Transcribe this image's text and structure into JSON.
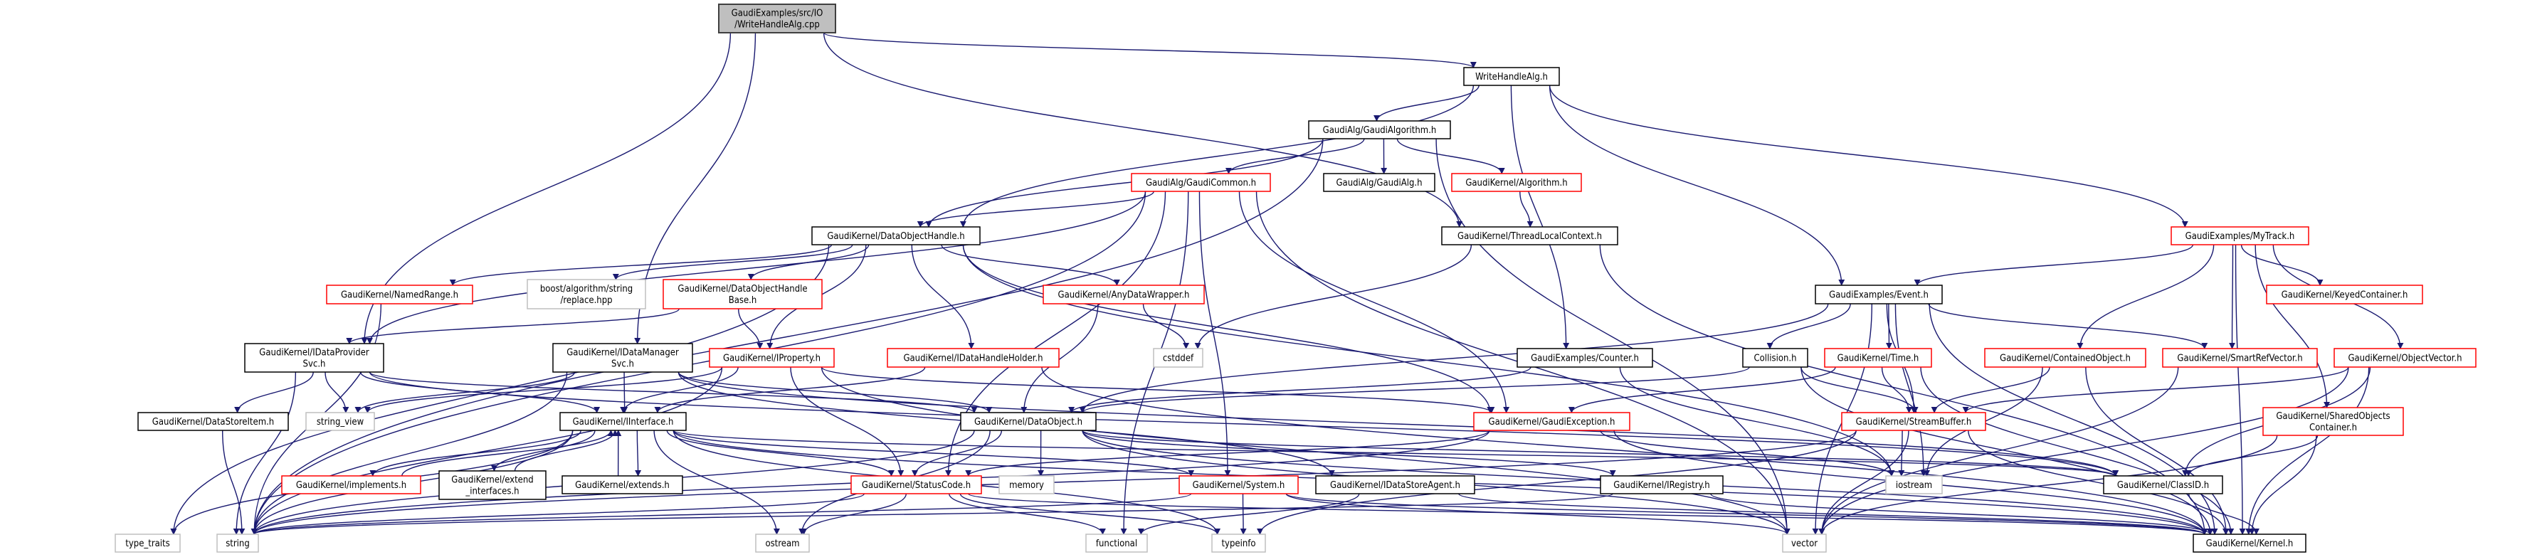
{
  "colors": {
    "edge": "#191970",
    "source_fill": "#bfbfbf",
    "source_border": "#404040",
    "documented_border": "#000000",
    "truncated_border": "#ff0000",
    "system_border": "#bfbfbf",
    "node_fill": "#ffffff"
  },
  "nodes": [
    {
      "id": "cpp",
      "lines": [
        "GaudiExamples/src/IO",
        "/WriteHandleAlg.cpp"
      ],
      "kind": "source"
    },
    {
      "id": "wha",
      "lines": [
        "WriteHandleAlg.h"
      ],
      "kind": "documented"
    },
    {
      "id": "galgo",
      "lines": [
        "GaudiAlg/GaudiAlgorithm.h"
      ],
      "kind": "documented"
    },
    {
      "id": "gcommon",
      "lines": [
        "GaudiAlg/GaudiCommon.h"
      ],
      "kind": "truncated"
    },
    {
      "id": "galg",
      "lines": [
        "GaudiAlg/GaudiAlg.h"
      ],
      "kind": "documented"
    },
    {
      "id": "algorithm",
      "lines": [
        "GaudiKernel/Algorithm.h"
      ],
      "kind": "truncated"
    },
    {
      "id": "doh",
      "lines": [
        "GaudiKernel/DataObjectHandle.h"
      ],
      "kind": "documented"
    },
    {
      "id": "tlc",
      "lines": [
        "GaudiKernel/ThreadLocalContext.h"
      ],
      "kind": "documented"
    },
    {
      "id": "mytrack",
      "lines": [
        "GaudiExamples/MyTrack.h"
      ],
      "kind": "truncated"
    },
    {
      "id": "namedrange",
      "lines": [
        "GaudiKernel/NamedRange.h"
      ],
      "kind": "truncated"
    },
    {
      "id": "boost",
      "lines": [
        "boost/algorithm/string",
        "/replace.hpp"
      ],
      "kind": "system"
    },
    {
      "id": "dohbase",
      "lines": [
        "GaudiKernel/DataObjectHandle",
        "Base.h"
      ],
      "kind": "truncated"
    },
    {
      "id": "anydw",
      "lines": [
        "GaudiKernel/AnyDataWrapper.h"
      ],
      "kind": "truncated"
    },
    {
      "id": "event",
      "lines": [
        "GaudiExamples/Event.h"
      ],
      "kind": "documented"
    },
    {
      "id": "keyed",
      "lines": [
        "GaudiKernel/KeyedContainer.h"
      ],
      "kind": "truncated"
    },
    {
      "id": "idps",
      "lines": [
        "GaudiKernel/IDataProvider",
        "Svc.h"
      ],
      "kind": "documented"
    },
    {
      "id": "idms",
      "lines": [
        "GaudiKernel/IDataManager",
        "Svc.h"
      ],
      "kind": "documented"
    },
    {
      "id": "iprop",
      "lines": [
        "GaudiKernel/IProperty.h"
      ],
      "kind": "truncated"
    },
    {
      "id": "idhh",
      "lines": [
        "GaudiKernel/IDataHandleHolder.h"
      ],
      "kind": "truncated"
    },
    {
      "id": "cstddef",
      "lines": [
        "cstddef"
      ],
      "kind": "system"
    },
    {
      "id": "counter",
      "lines": [
        "GaudiExamples/Counter.h"
      ],
      "kind": "documented"
    },
    {
      "id": "collision",
      "lines": [
        "Collision.h"
      ],
      "kind": "documented"
    },
    {
      "id": "time",
      "lines": [
        "GaudiKernel/Time.h"
      ],
      "kind": "truncated"
    },
    {
      "id": "contained",
      "lines": [
        "GaudiKernel/ContainedObject.h"
      ],
      "kind": "truncated"
    },
    {
      "id": "smartref",
      "lines": [
        "GaudiKernel/SmartRefVector.h"
      ],
      "kind": "truncated"
    },
    {
      "id": "objvec",
      "lines": [
        "GaudiKernel/ObjectVector.h"
      ],
      "kind": "truncated"
    },
    {
      "id": "dsi",
      "lines": [
        "GaudiKernel/DataStoreItem.h"
      ],
      "kind": "documented"
    },
    {
      "id": "strview",
      "lines": [
        "string_view"
      ],
      "kind": "system"
    },
    {
      "id": "iint",
      "lines": [
        "GaudiKernel/IInterface.h"
      ],
      "kind": "documented"
    },
    {
      "id": "dataobj",
      "lines": [
        "GaudiKernel/DataObject.h"
      ],
      "kind": "documented"
    },
    {
      "id": "gexc",
      "lines": [
        "GaudiKernel/GaudiException.h"
      ],
      "kind": "truncated"
    },
    {
      "id": "streambuf",
      "lines": [
        "GaudiKernel/StreamBuffer.h"
      ],
      "kind": "truncated"
    },
    {
      "id": "shared",
      "lines": [
        "GaudiKernel/SharedObjects",
        "Container.h"
      ],
      "kind": "truncated"
    },
    {
      "id": "impl",
      "lines": [
        "GaudiKernel/implements.h"
      ],
      "kind": "truncated"
    },
    {
      "id": "extif",
      "lines": [
        "GaudiKernel/extend",
        "_interfaces.h"
      ],
      "kind": "documented"
    },
    {
      "id": "extends",
      "lines": [
        "GaudiKernel/extends.h"
      ],
      "kind": "documented"
    },
    {
      "id": "statuscode",
      "lines": [
        "GaudiKernel/StatusCode.h"
      ],
      "kind": "truncated"
    },
    {
      "id": "memory",
      "lines": [
        "memory"
      ],
      "kind": "system"
    },
    {
      "id": "system",
      "lines": [
        "GaudiKernel/System.h"
      ],
      "kind": "truncated"
    },
    {
      "id": "idsa",
      "lines": [
        "GaudiKernel/IDataStoreAgent.h"
      ],
      "kind": "documented"
    },
    {
      "id": "ireg",
      "lines": [
        "GaudiKernel/IRegistry.h"
      ],
      "kind": "documented"
    },
    {
      "id": "iostream",
      "lines": [
        "iostream"
      ],
      "kind": "system"
    },
    {
      "id": "classid",
      "lines": [
        "GaudiKernel/ClassID.h"
      ],
      "kind": "documented"
    },
    {
      "id": "typetraits",
      "lines": [
        "type_traits"
      ],
      "kind": "system"
    },
    {
      "id": "string",
      "lines": [
        "string"
      ],
      "kind": "system"
    },
    {
      "id": "ostream",
      "lines": [
        "ostream"
      ],
      "kind": "system"
    },
    {
      "id": "functional",
      "lines": [
        "functional"
      ],
      "kind": "system"
    },
    {
      "id": "typeinfo",
      "lines": [
        "typeinfo"
      ],
      "kind": "system"
    },
    {
      "id": "vector",
      "lines": [
        "vector"
      ],
      "kind": "system"
    },
    {
      "id": "kernel",
      "lines": [
        "GaudiKernel/Kernel.h"
      ],
      "kind": "documented"
    }
  ],
  "edges": [
    [
      "cpp",
      "wha"
    ],
    [
      "cpp",
      "idps"
    ],
    [
      "cpp",
      "idms"
    ],
    [
      "cpp",
      "tlc"
    ],
    [
      "wha",
      "galgo"
    ],
    [
      "wha",
      "doh"
    ],
    [
      "wha",
      "mytrack"
    ],
    [
      "wha",
      "event"
    ],
    [
      "wha",
      "counter"
    ],
    [
      "galgo",
      "gcommon"
    ],
    [
      "galgo",
      "galg"
    ],
    [
      "galgo",
      "algorithm"
    ],
    [
      "galgo",
      "doh"
    ],
    [
      "galgo",
      "string"
    ],
    [
      "galgo",
      "vector"
    ],
    [
      "gcommon",
      "doh"
    ],
    [
      "gcommon",
      "idps"
    ],
    [
      "gcommon",
      "string"
    ],
    [
      "gcommon",
      "statuscode"
    ],
    [
      "gcommon",
      "functional"
    ],
    [
      "gcommon",
      "system"
    ],
    [
      "gcommon",
      "gexc"
    ],
    [
      "gcommon",
      "vector"
    ],
    [
      "algorithm",
      "tlc"
    ],
    [
      "tlc",
      "cstddef"
    ],
    [
      "tlc",
      "kernel"
    ],
    [
      "doh",
      "namedrange"
    ],
    [
      "doh",
      "boost"
    ],
    [
      "doh",
      "dohbase"
    ],
    [
      "doh",
      "iprop"
    ],
    [
      "doh",
      "anydw"
    ],
    [
      "doh",
      "idhh"
    ],
    [
      "doh",
      "gexc"
    ],
    [
      "doh",
      "typetraits"
    ],
    [
      "doh",
      "iostream"
    ],
    [
      "namedrange",
      "string"
    ],
    [
      "dohbase",
      "idps"
    ],
    [
      "dohbase",
      "iprop"
    ],
    [
      "idps",
      "dsi"
    ],
    [
      "idps",
      "strview"
    ],
    [
      "idps",
      "iint"
    ],
    [
      "idps",
      "string"
    ],
    [
      "idps",
      "dataobj"
    ],
    [
      "idps",
      "classid"
    ],
    [
      "idms",
      "iint"
    ],
    [
      "idms",
      "strview"
    ],
    [
      "idms",
      "string"
    ],
    [
      "idms",
      "classid"
    ],
    [
      "idms",
      "idsa"
    ],
    [
      "idms",
      "dataobj"
    ],
    [
      "iprop",
      "iint"
    ],
    [
      "iprop",
      "strview"
    ],
    [
      "iprop",
      "string"
    ],
    [
      "iprop",
      "statuscode"
    ],
    [
      "iprop",
      "vector"
    ],
    [
      "iprop",
      "gexc"
    ],
    [
      "dsi",
      "string"
    ],
    [
      "iint",
      "impl"
    ],
    [
      "iint",
      "extif"
    ],
    [
      "iint",
      "extends"
    ],
    [
      "iint",
      "ostream"
    ],
    [
      "iint",
      "statuscode"
    ],
    [
      "iint",
      "system"
    ],
    [
      "iint",
      "string"
    ],
    [
      "iint",
      "typetraits"
    ],
    [
      "iint",
      "typeinfo"
    ],
    [
      "iint",
      "kernel"
    ],
    [
      "iint",
      "classid"
    ],
    [
      "impl",
      "iint"
    ],
    [
      "extif",
      "iint"
    ],
    [
      "extends",
      "iint"
    ],
    [
      "anydw",
      "dataobj"
    ],
    [
      "anydw",
      "cstddef"
    ],
    [
      "idhh",
      "iint"
    ],
    [
      "idhh",
      "kernel"
    ],
    [
      "dataobj",
      "statuscode"
    ],
    [
      "dataobj",
      "memory"
    ],
    [
      "dataobj",
      "string"
    ],
    [
      "dataobj",
      "ostream"
    ],
    [
      "dataobj",
      "classid"
    ],
    [
      "dataobj",
      "vector"
    ],
    [
      "dataobj",
      "ireg"
    ],
    [
      "dataobj",
      "kernel"
    ],
    [
      "counter",
      "dataobj"
    ],
    [
      "counter",
      "iostream"
    ],
    [
      "gexc",
      "statuscode"
    ],
    [
      "gexc",
      "string"
    ],
    [
      "gexc",
      "iostream"
    ],
    [
      "gexc",
      "kernel"
    ],
    [
      "statuscode",
      "ostream"
    ],
    [
      "statuscode",
      "functional"
    ],
    [
      "statuscode",
      "typeinfo"
    ],
    [
      "statuscode",
      "string"
    ],
    [
      "statuscode",
      "kernel"
    ],
    [
      "system",
      "typeinfo"
    ],
    [
      "system",
      "string"
    ],
    [
      "system",
      "vector"
    ],
    [
      "system",
      "kernel"
    ],
    [
      "idsa",
      "functional"
    ],
    [
      "idsa",
      "kernel"
    ],
    [
      "ireg",
      "string"
    ],
    [
      "ireg",
      "kernel"
    ],
    [
      "mytrack",
      "event"
    ],
    [
      "mytrack",
      "contained"
    ],
    [
      "mytrack",
      "smartref"
    ],
    [
      "mytrack",
      "keyed"
    ],
    [
      "mytrack",
      "objvec"
    ],
    [
      "mytrack",
      "shared"
    ],
    [
      "mytrack",
      "kernel"
    ],
    [
      "event",
      "collision"
    ],
    [
      "event",
      "time"
    ],
    [
      "event",
      "streambuf"
    ],
    [
      "event",
      "smartref"
    ],
    [
      "event",
      "dataobj"
    ],
    [
      "event",
      "iostream"
    ],
    [
      "event",
      "vector"
    ],
    [
      "event",
      "kernel"
    ],
    [
      "collision",
      "dataobj"
    ],
    [
      "collision",
      "streambuf"
    ],
    [
      "collision",
      "kernel"
    ],
    [
      "time",
      "streambuf"
    ],
    [
      "time",
      "gexc"
    ],
    [
      "time",
      "kernel"
    ],
    [
      "contained",
      "streambuf"
    ],
    [
      "contained",
      "iostream"
    ],
    [
      "contained",
      "kernel"
    ],
    [
      "smartref",
      "vector"
    ],
    [
      "objvec",
      "streambuf"
    ],
    [
      "objvec",
      "classid"
    ],
    [
      "objvec",
      "vector"
    ],
    [
      "objvec",
      "kernel"
    ],
    [
      "shared",
      "classid"
    ],
    [
      "shared",
      "vector"
    ],
    [
      "shared",
      "kernel"
    ],
    [
      "streambuf",
      "iostream"
    ],
    [
      "streambuf",
      "vector"
    ],
    [
      "streambuf",
      "kernel"
    ],
    [
      "streambuf",
      "string"
    ],
    [
      "streambuf",
      "typeinfo"
    ],
    [
      "classid",
      "kernel"
    ]
  ]
}
